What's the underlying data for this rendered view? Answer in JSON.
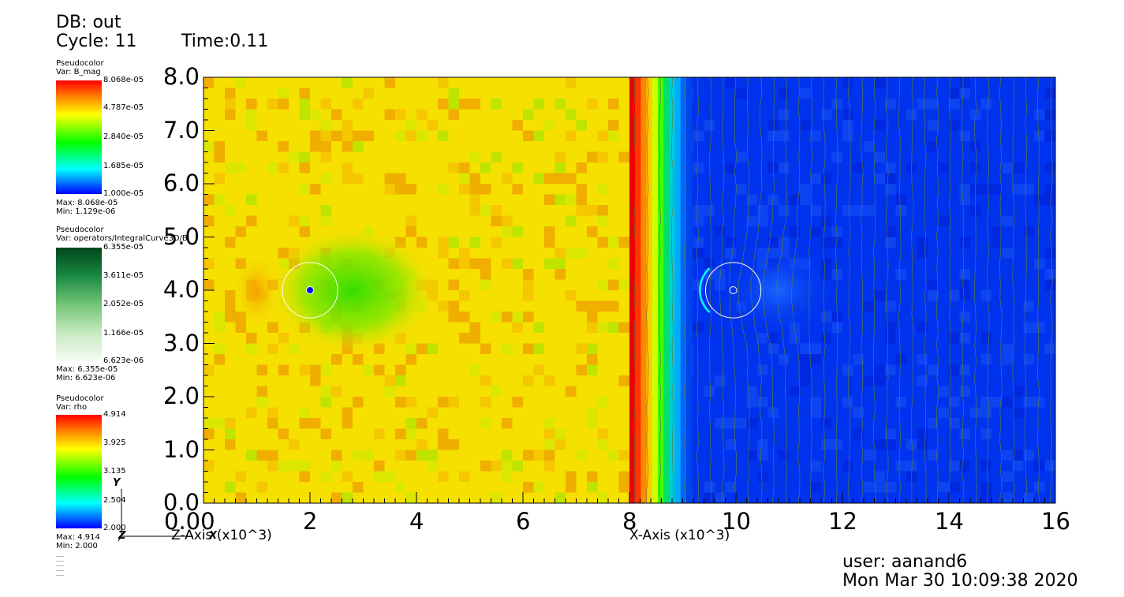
{
  "header": {
    "db": "DB: out",
    "cycle": "Cycle: 11",
    "time": "Time:0.11"
  },
  "legends": [
    {
      "title": "Pseudocolor",
      "var": "Var: B_mag",
      "ticks": [
        "8.068e-05",
        "4.787e-05",
        "2.840e-05",
        "1.685e-05",
        "1.000e-05"
      ],
      "max": "Max:  8.068e-05",
      "min": "Min:  1.129e-06",
      "colormap": "rainbow"
    },
    {
      "title": "Pseudocolor",
      "var": "Var: operators/IntegralCurve3D/B",
      "ticks": [
        "6.355e-05",
        "3.611e-05",
        "2.052e-05",
        "1.166e-05",
        "6.623e-06"
      ],
      "max": "Max:  6.355e-05",
      "min": "Min:  6.623e-06",
      "colormap": "greens"
    },
    {
      "title": "Pseudocolor",
      "var": "Var: rho",
      "ticks": [
        "4.914",
        "3.925",
        "3.135",
        "2.504",
        "2.000"
      ],
      "max": "Max:  4.914",
      "min": "Min:  2.000",
      "colormap": "rainbow"
    }
  ],
  "triad": {
    "y": "Y",
    "z": "Z",
    "x": "X"
  },
  "chart_data": {
    "type": "heatmap",
    "y_ticks": [
      "8.0",
      "7.0",
      "6.0",
      "5.0",
      "4.0",
      "3.0",
      "2.0",
      "1.0",
      "0.0"
    ],
    "x_ticks": [
      "2",
      "4",
      "6",
      "8",
      "10",
      "12",
      "14",
      "16"
    ],
    "x_origin_label": "0.00",
    "xlim": [
      0,
      16
    ],
    "ylim": [
      0,
      8
    ],
    "z_axis_label": "Z-Axis (x10^3)",
    "x_axis_label": "X-Axis (x10^3)",
    "panels": [
      {
        "name": "rho",
        "x_range": [
          0,
          8
        ],
        "dominant_color": "#f5e000"
      },
      {
        "name": "B_mag",
        "x_range": [
          8,
          16
        ],
        "dominant_color": "#0033ee"
      }
    ],
    "circles": [
      {
        "center": [
          2,
          4
        ],
        "radius": 0.52
      },
      {
        "center": [
          9.95,
          4
        ],
        "radius": 0.52
      }
    ]
  },
  "footer": {
    "user": "user: aanand6",
    "timestamp": "Mon Mar 30 10:09:38 2020"
  }
}
